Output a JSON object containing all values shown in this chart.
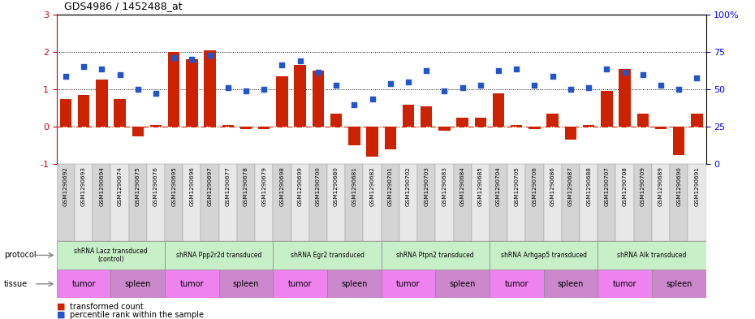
{
  "title": "GDS4986 / 1452488_at",
  "sample_ids": [
    "GSM1290692",
    "GSM1290693",
    "GSM1290694",
    "GSM1290674",
    "GSM1290675",
    "GSM1290676",
    "GSM1290695",
    "GSM1290696",
    "GSM1290697",
    "GSM1290677",
    "GSM1290678",
    "GSM1290679",
    "GSM1290698",
    "GSM1290699",
    "GSM1290700",
    "GSM1290680",
    "GSM1290681",
    "GSM1290682",
    "GSM1290701",
    "GSM1290702",
    "GSM1290703",
    "GSM1290683",
    "GSM1290684",
    "GSM1290685",
    "GSM1290704",
    "GSM1290705",
    "GSM1290706",
    "GSM1290686",
    "GSM1290687",
    "GSM1290688",
    "GSM1290707",
    "GSM1290708",
    "GSM1290709",
    "GSM1290689",
    "GSM1290690",
    "GSM1290691"
  ],
  "bar_values": [
    0.75,
    0.85,
    1.25,
    0.75,
    -0.25,
    0.05,
    2.0,
    1.8,
    2.05,
    0.05,
    -0.05,
    -0.05,
    1.35,
    1.65,
    1.5,
    0.35,
    -0.5,
    -0.8,
    -0.6,
    0.6,
    0.55,
    -0.1,
    0.25,
    0.25,
    0.9,
    0.05,
    -0.05,
    0.35,
    -0.35,
    0.05,
    0.95,
    1.55,
    0.35,
    -0.05,
    -0.75,
    0.35
  ],
  "dot_values": [
    1.35,
    1.6,
    1.55,
    1.4,
    1.0,
    0.9,
    1.85,
    1.8,
    1.9,
    1.05,
    0.95,
    1.0,
    1.65,
    1.75,
    1.45,
    1.1,
    0.6,
    0.75,
    1.15,
    1.2,
    1.5,
    0.95,
    1.05,
    1.1,
    1.5,
    1.55,
    1.1,
    1.35,
    1.0,
    1.05,
    1.55,
    1.45,
    1.4,
    1.1,
    1.0,
    1.3
  ],
  "protocols": [
    {
      "label": "shRNA Lacz transduced\n(control)",
      "start": 0,
      "end": 6,
      "color": "#c8f0c8"
    },
    {
      "label": "shRNA Ppp2r2d transduced",
      "start": 6,
      "end": 12,
      "color": "#c8f0c8"
    },
    {
      "label": "shRNA Egr2 transduced",
      "start": 12,
      "end": 18,
      "color": "#c8f0c8"
    },
    {
      "label": "shRNA Ptpn2 transduced",
      "start": 18,
      "end": 24,
      "color": "#c8f0c8"
    },
    {
      "label": "shRNA Arhgap5 transduced",
      "start": 24,
      "end": 30,
      "color": "#c8f0c8"
    },
    {
      "label": "shRNA Alk transduced",
      "start": 30,
      "end": 36,
      "color": "#c8f0c8"
    }
  ],
  "tissues": [
    {
      "label": "tumor",
      "start": 0,
      "end": 3,
      "color": "#ee82ee"
    },
    {
      "label": "spleen",
      "start": 3,
      "end": 6,
      "color": "#cc88cc"
    },
    {
      "label": "tumor",
      "start": 6,
      "end": 9,
      "color": "#ee82ee"
    },
    {
      "label": "spleen",
      "start": 9,
      "end": 12,
      "color": "#cc88cc"
    },
    {
      "label": "tumor",
      "start": 12,
      "end": 15,
      "color": "#ee82ee"
    },
    {
      "label": "spleen",
      "start": 15,
      "end": 18,
      "color": "#cc88cc"
    },
    {
      "label": "tumor",
      "start": 18,
      "end": 21,
      "color": "#ee82ee"
    },
    {
      "label": "spleen",
      "start": 21,
      "end": 24,
      "color": "#cc88cc"
    },
    {
      "label": "tumor",
      "start": 24,
      "end": 27,
      "color": "#ee82ee"
    },
    {
      "label": "spleen",
      "start": 27,
      "end": 30,
      "color": "#cc88cc"
    },
    {
      "label": "tumor",
      "start": 30,
      "end": 33,
      "color": "#ee82ee"
    },
    {
      "label": "spleen",
      "start": 33,
      "end": 36,
      "color": "#cc88cc"
    }
  ],
  "ylim": [
    -1.0,
    3.0
  ],
  "yticks": [
    -1,
    0,
    1,
    2,
    3
  ],
  "y2ticks": [
    0,
    25,
    50,
    75,
    100
  ],
  "bar_color": "#cc2200",
  "dot_color": "#2255cc",
  "ytick_color": "#cc0000",
  "bg_color": "#ffffff"
}
